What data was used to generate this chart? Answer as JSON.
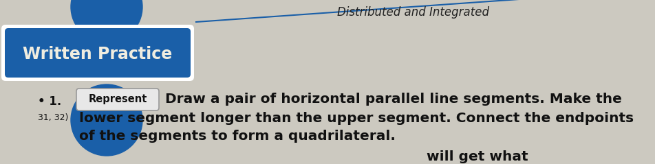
{
  "bg_color": "#ccc9c0",
  "badge_color": "#1a5fa8",
  "badge_text": "Written Practice",
  "badge_text_color": "#f0ede0",
  "header_text": "Distributed and Integrated",
  "header_line_color": "#1a5fa8",
  "represent_label": "Represent",
  "represent_bg": "#e8e8e8",
  "number_label": "• 1.",
  "number_label2": "31, 32)",
  "main_text_line1": "Draw a pair of horizontal parallel line segments. Make the",
  "main_text_line2": "lower segment longer than the upper segment. Connect the endpoints",
  "main_text_line3": "of the segments to form a quadrilateral.",
  "text_color": "#111111",
  "bottom_partial_text": "will get what",
  "font_size_main": 14.5,
  "font_size_badge": 17,
  "font_size_number": 12,
  "font_size_represent": 10.5,
  "font_size_header": 12
}
